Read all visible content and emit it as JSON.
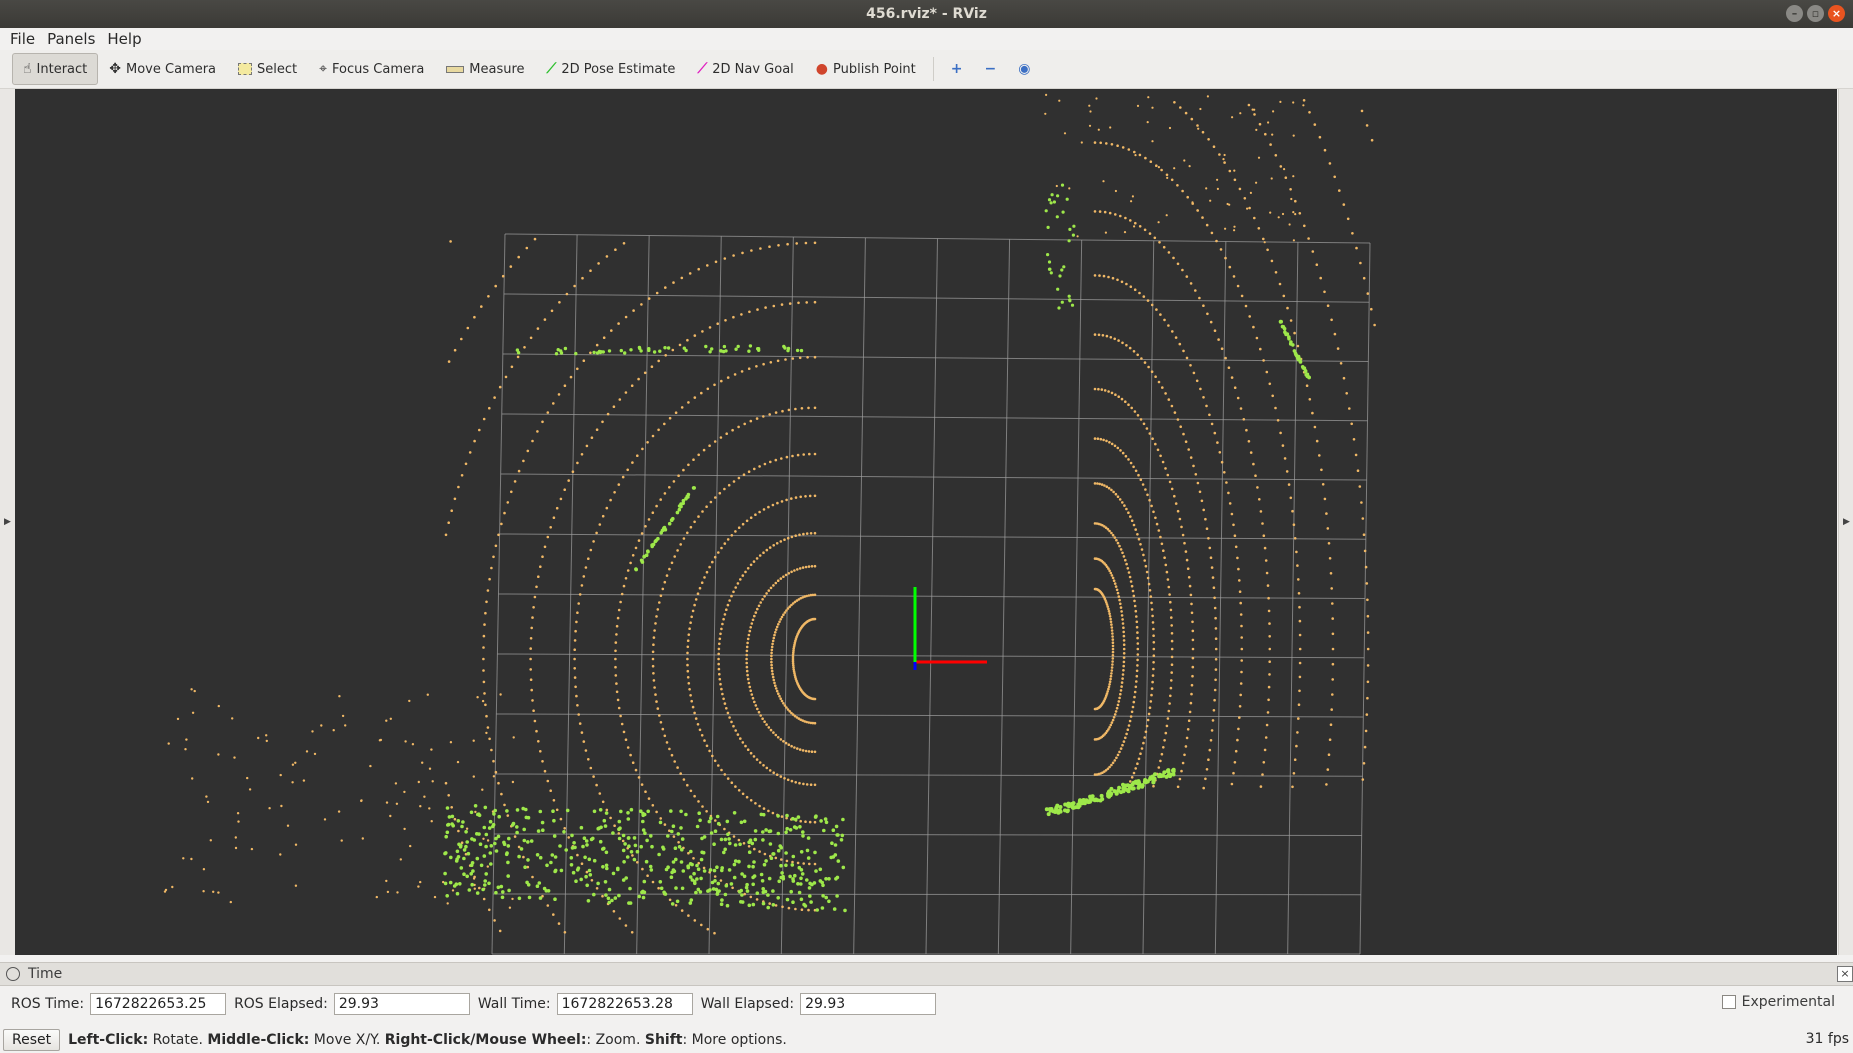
{
  "window": {
    "title": "456.rviz* - RViz"
  },
  "menu": {
    "file": "File",
    "panels": "Panels",
    "help": "Help"
  },
  "toolbar": {
    "interact": "Interact",
    "move_camera": "Move Camera",
    "select": "Select",
    "focus_camera": "Focus Camera",
    "measure": "Measure",
    "pose_estimate": "2D Pose Estimate",
    "nav_goal": "2D Nav Goal",
    "publish_point": "Publish Point"
  },
  "colors": {
    "background": "#303030",
    "grid": "#a0a0a0",
    "points_orange": "#f0b866",
    "points_green": "#9ee84a",
    "axis_x": "#ff0000",
    "axis_y": "#00ff00",
    "axis_z": "#0000ff"
  },
  "time_panel": {
    "title": "Time",
    "ros_time_label": "ROS Time:",
    "ros_time": "1672822653.25",
    "ros_elapsed_label": "ROS Elapsed:",
    "ros_elapsed": "29.93",
    "wall_time_label": "Wall Time:",
    "wall_time": "1672822653.28",
    "wall_elapsed_label": "Wall Elapsed:",
    "wall_elapsed": "29.93",
    "experimental_label": "Experimental"
  },
  "status": {
    "reset_label": "Reset",
    "left_click_label": "Left-Click:",
    "left_click_text": " Rotate. ",
    "middle_click_label": "Middle-Click:",
    "middle_click_text": " Move X/Y. ",
    "right_click_label": "Right-Click/Mouse Wheel:",
    "right_click_text": ": Zoom. ",
    "shift_label": "Shift",
    "shift_text": ": More options.",
    "fps": "31 fps"
  }
}
